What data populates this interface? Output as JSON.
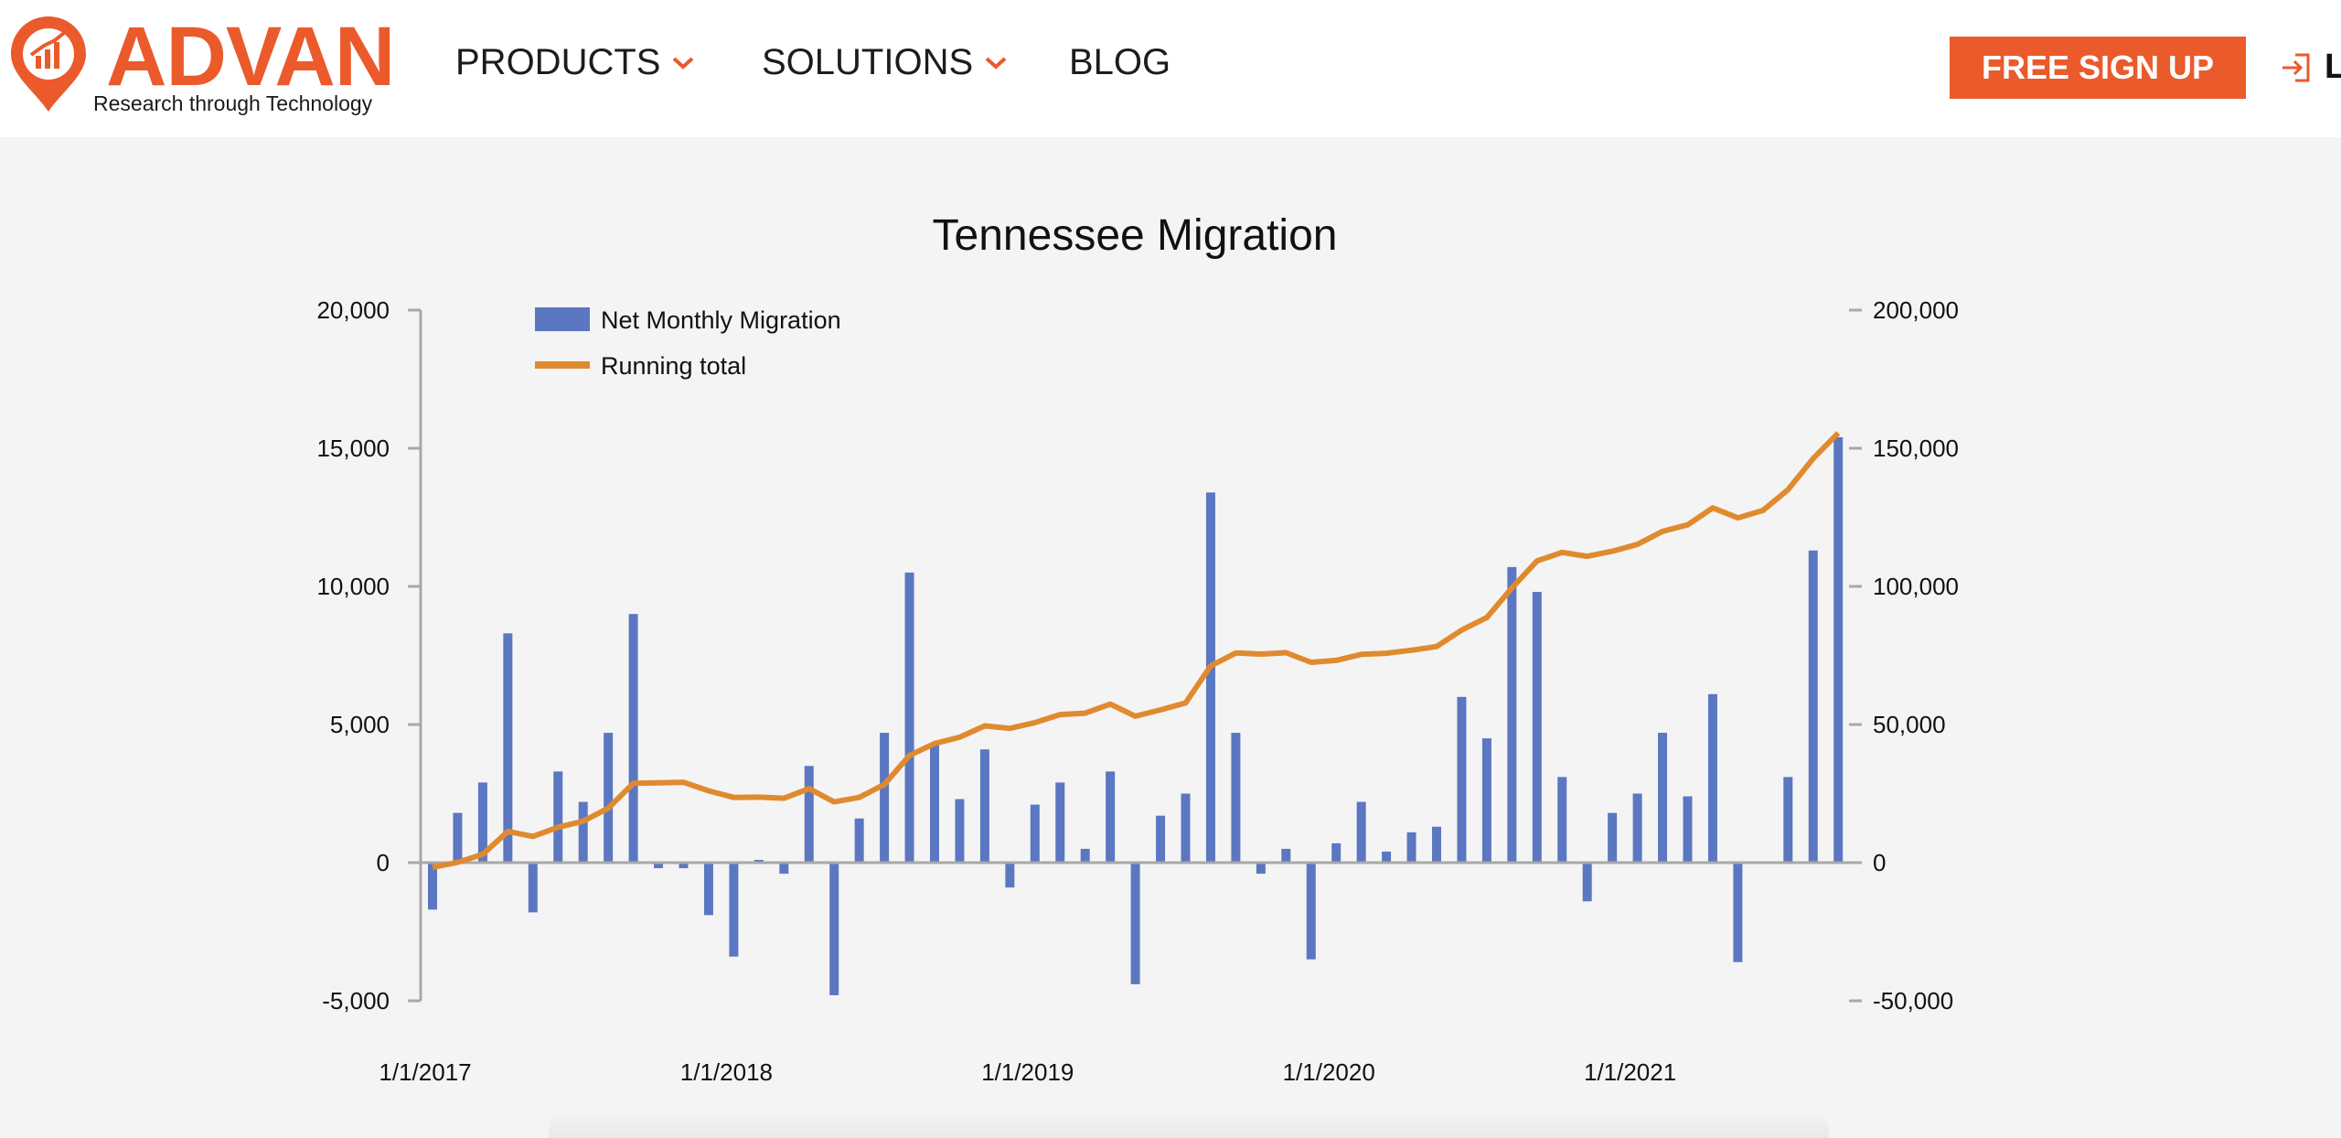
{
  "header": {
    "logo": {
      "brand": "ADVAN",
      "tagline": "Research through Technology"
    },
    "nav": [
      {
        "label": "PRODUCTS",
        "has_dropdown": true
      },
      {
        "label": "SOLUTIONS",
        "has_dropdown": true
      },
      {
        "label": "BLOG",
        "has_dropdown": false
      }
    ],
    "signup_label": "FREE SIGN UP",
    "login_label": "L",
    "icons": {
      "logo": "map-pin-chart-icon",
      "dropdown": "chevron-down-icon",
      "login": "login-icon"
    }
  },
  "colors": {
    "brand": "#eb5a2b",
    "bar": "#5b77c2",
    "line": "#e08a30",
    "axis": "#a8a8a8"
  },
  "chart_data": {
    "type": "bar+line",
    "title": "Tennessee Migration",
    "legend": [
      "Net Monthly Migration",
      "Running total"
    ],
    "legend_position": "top-left",
    "x_labels": [
      "1/1/2017",
      "1/1/2018",
      "1/1/2019",
      "1/1/2020",
      "1/1/2021"
    ],
    "x_label_month_index": [
      0,
      12,
      24,
      36,
      48
    ],
    "y_left": {
      "min": -5000,
      "max": 20000,
      "ticks": [
        20000,
        15000,
        10000,
        5000,
        0,
        -5000
      ],
      "tick_labels": [
        "20,000",
        "15,000",
        "10,000",
        "5,000",
        "0",
        "-5,000"
      ]
    },
    "y_right": {
      "min": -50000,
      "max": 200000,
      "ticks": [
        200000,
        150000,
        100000,
        50000,
        0,
        -50000
      ],
      "tick_labels": [
        "200,000",
        "150,000",
        "100,000",
        "50,000",
        "0",
        "-50,000"
      ]
    },
    "series": [
      {
        "name": "Net Monthly Migration",
        "axis": "left",
        "type": "bar",
        "values": [
          -1700,
          1800,
          2900,
          8300,
          -1800,
          3300,
          2200,
          4700,
          9000,
          -200,
          -200,
          -1900,
          -3400,
          100,
          -400,
          3500,
          -4800,
          1600,
          4700,
          10500,
          4300,
          2300,
          4100,
          -900,
          2100,
          2900,
          500,
          3300,
          -4400,
          1700,
          2500,
          13400,
          4700,
          -400,
          500,
          -3500,
          700,
          2200,
          400,
          1100,
          1300,
          6000,
          4500,
          10700,
          9800,
          3100,
          -1400,
          1800,
          2500,
          4700,
          2400,
          6100,
          -3600,
          0,
          3100,
          11300,
          15400
        ]
      },
      {
        "name": "Running total",
        "axis": "right",
        "type": "line",
        "values": [
          -1700,
          100,
          3000,
          11300,
          9500,
          12800,
          15000,
          19700,
          28700,
          28900,
          29100,
          26000,
          23600,
          23700,
          23300,
          26800,
          22000,
          23600,
          28300,
          38800,
          43100,
          45400,
          49500,
          48600,
          50700,
          53600,
          54100,
          57400,
          53000,
          55300,
          57800,
          71200,
          75900,
          75500,
          76000,
          72500,
          73200,
          75400,
          75800,
          76900,
          78200,
          84200,
          88700,
          99400,
          109200,
          112300,
          110900,
          112700,
          115200,
          119900,
          122300,
          128400,
          124800,
          127500,
          135000,
          146300,
          155500
        ]
      }
    ]
  }
}
